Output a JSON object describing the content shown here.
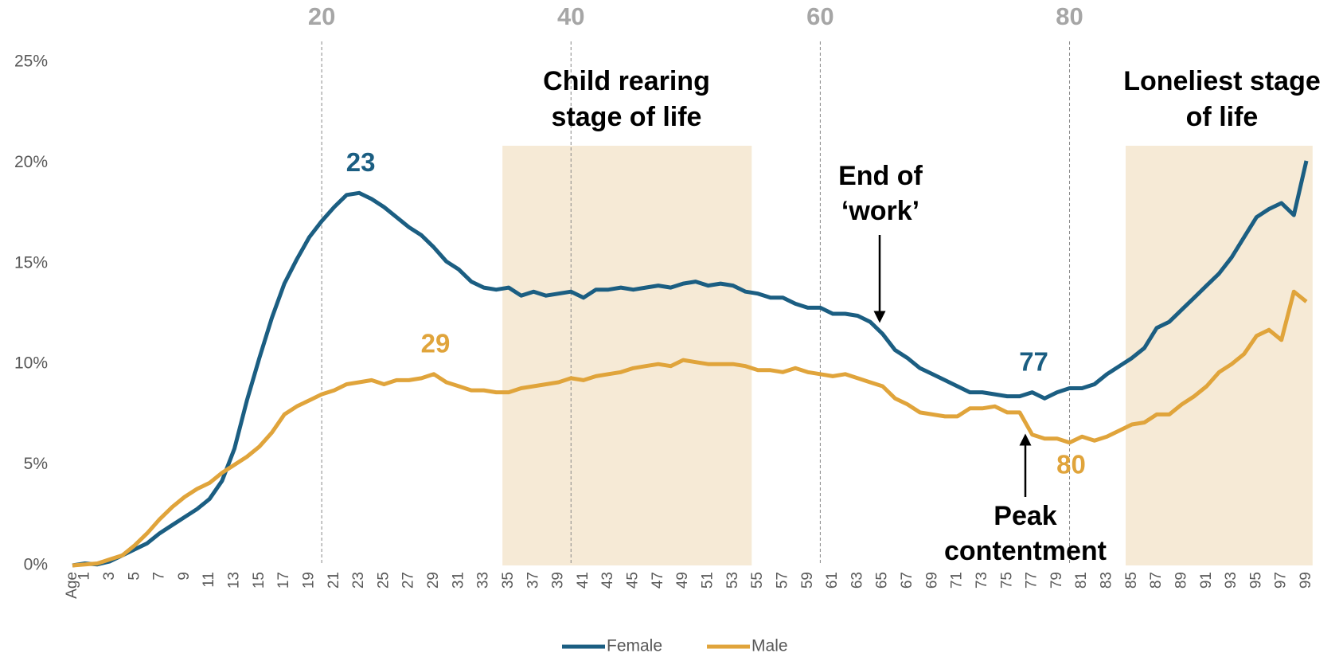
{
  "chart_data": {
    "type": "line",
    "categories": [
      "Age",
      "1",
      null,
      "3",
      null,
      "5",
      null,
      "7",
      null,
      "9",
      null,
      "11",
      null,
      "13",
      null,
      "15",
      null,
      "17",
      null,
      "19",
      null,
      "21",
      null,
      "23",
      null,
      "25",
      null,
      "27",
      null,
      "29",
      null,
      "31",
      null,
      "33",
      null,
      "35",
      null,
      "37",
      null,
      "39",
      null,
      "41",
      null,
      "43",
      null,
      "45",
      null,
      "47",
      null,
      "49",
      null,
      "51",
      null,
      "53",
      null,
      "55",
      null,
      "57",
      null,
      "59",
      null,
      "61",
      null,
      "63",
      null,
      "65",
      null,
      "67",
      null,
      "69",
      null,
      "71",
      null,
      "73",
      null,
      "75",
      null,
      "77",
      null,
      "79",
      null,
      "81",
      null,
      "83",
      null,
      "85",
      null,
      "87",
      null,
      "89",
      null,
      "91",
      null,
      "93",
      null,
      "95",
      null,
      "97",
      null,
      "99"
    ],
    "series": [
      {
        "name": "Female",
        "color": "#1b5e82",
        "values": [
          0,
          0.1,
          0.05,
          0.2,
          0.5,
          0.8,
          1.1,
          1.6,
          2.0,
          2.4,
          2.8,
          3.3,
          4.2,
          5.8,
          8.2,
          10.3,
          12.3,
          14.0,
          15.2,
          16.3,
          17.1,
          17.8,
          18.4,
          18.5,
          18.2,
          17.8,
          17.3,
          16.8,
          16.4,
          15.8,
          15.1,
          14.7,
          14.1,
          13.8,
          13.7,
          13.8,
          13.4,
          13.6,
          13.4,
          13.5,
          13.6,
          13.3,
          13.7,
          13.7,
          13.8,
          13.7,
          13.8,
          13.9,
          13.8,
          14.0,
          14.1,
          13.9,
          14.0,
          13.9,
          13.6,
          13.5,
          13.3,
          13.3,
          13.0,
          12.8,
          12.8,
          12.5,
          12.5,
          12.4,
          12.1,
          11.5,
          10.7,
          10.3,
          9.8,
          9.5,
          9.2,
          8.9,
          8.6,
          8.6,
          8.5,
          8.4,
          8.4,
          8.6,
          8.3,
          8.6,
          8.8,
          8.8,
          9.0,
          9.5,
          9.9,
          10.3,
          10.8,
          11.8,
          12.1,
          12.7,
          13.3,
          13.9,
          14.5,
          15.3,
          16.3,
          17.3,
          17.7,
          18.0,
          17.4,
          20.1
        ]
      },
      {
        "name": "Male",
        "color": "#e0a43b",
        "values": [
          0,
          0.05,
          0.1,
          0.3,
          0.5,
          1.0,
          1.6,
          2.3,
          2.9,
          3.4,
          3.8,
          4.1,
          4.6,
          5.0,
          5.4,
          5.9,
          6.6,
          7.5,
          7.9,
          8.2,
          8.5,
          8.7,
          9.0,
          9.1,
          9.2,
          9.0,
          9.2,
          9.2,
          9.3,
          9.5,
          9.1,
          8.9,
          8.7,
          8.7,
          8.6,
          8.6,
          8.8,
          8.9,
          9.0,
          9.1,
          9.3,
          9.2,
          9.4,
          9.5,
          9.6,
          9.8,
          9.9,
          10.0,
          9.9,
          10.2,
          10.1,
          10.0,
          10.0,
          10.0,
          9.9,
          9.7,
          9.7,
          9.6,
          9.8,
          9.6,
          9.5,
          9.4,
          9.5,
          9.3,
          9.1,
          8.9,
          8.3,
          8.0,
          7.6,
          7.5,
          7.4,
          7.4,
          7.8,
          7.8,
          7.9,
          7.6,
          7.6,
          6.5,
          6.3,
          6.3,
          6.1,
          6.4,
          6.2,
          6.4,
          6.7,
          7.0,
          7.1,
          7.5,
          7.5,
          8.0,
          8.4,
          8.9,
          9.6,
          10.0,
          10.5,
          11.4,
          11.7,
          11.2,
          13.6,
          13.1
        ]
      }
    ],
    "ylim": [
      0,
      25
    ],
    "yticks": [
      {
        "value": 0,
        "label": "0%"
      },
      {
        "value": 5,
        "label": "5%"
      },
      {
        "value": 10,
        "label": "10%"
      },
      {
        "value": 15,
        "label": "15%"
      },
      {
        "value": 20,
        "label": "20%"
      },
      {
        "value": 25,
        "label": "25%"
      }
    ],
    "top_xticks": [
      20,
      40,
      60,
      80
    ],
    "regions": [
      {
        "label": [
          "Child rearing",
          "stage of life"
        ],
        "range": [
          35,
          54
        ]
      },
      {
        "label": [
          "Loneliest stage",
          "of life"
        ],
        "range": [
          85,
          99
        ]
      }
    ],
    "peak_labels": [
      {
        "series": 0,
        "label": "23",
        "position": "above"
      },
      {
        "series": 1,
        "label": "29",
        "position": "above"
      },
      {
        "series": 0,
        "label": "77",
        "position": "above"
      },
      {
        "series": 1,
        "label": "80",
        "position": "below"
      }
    ],
    "annotations": [
      {
        "text": [
          "End of",
          "‘work’"
        ]
      },
      {
        "text": [
          "Peak",
          "contentment"
        ]
      }
    ],
    "legend": "bottom"
  }
}
